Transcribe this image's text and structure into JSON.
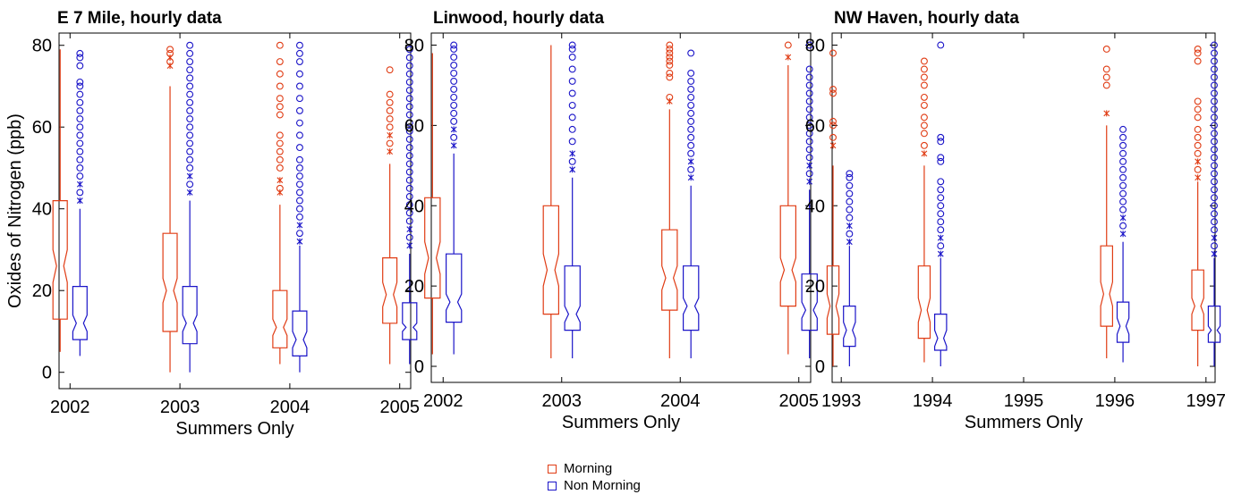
{
  "colors": {
    "morning": "#e03c14",
    "non_morning": "#1a14c8"
  },
  "legend": {
    "morning": "Morning",
    "non_morning": "Non Morning"
  },
  "ylabel": "Oxides of Nitrogen (ppb)",
  "chart_data": [
    {
      "type": "boxplot",
      "title": "E 7 Mile, hourly data",
      "xlabel": "Summers Only",
      "ylabel": "Oxides of Nitrogen (ppb)",
      "ylim": [
        -4,
        83
      ],
      "yticks": [
        0,
        20,
        40,
        60,
        80
      ],
      "categories": [
        "2002",
        "2003",
        "2004",
        "2005"
      ],
      "x_range": [
        2001.9,
        2005.1
      ],
      "series": [
        {
          "name": "Morning",
          "boxes": [
            {
              "x": 2002,
              "q1": 13,
              "median": 26,
              "q3": 42,
              "notch_low": 22,
              "notch_high": 30,
              "whisker_low": 5,
              "whisker_high": 79,
              "outliers": []
            },
            {
              "x": 2003,
              "q1": 10,
              "median": 20,
              "q3": 34,
              "notch_low": 17,
              "notch_high": 23,
              "whisker_low": 0,
              "whisker_high": 70,
              "outliers": [
                75,
                76,
                77,
                78,
                79
              ]
            },
            {
              "x": 2004,
              "q1": 6,
              "median": 11,
              "q3": 20,
              "notch_low": 9,
              "notch_high": 13,
              "whisker_low": 2,
              "whisker_high": 41,
              "outliers": [
                44,
                45,
                47,
                50,
                52,
                54,
                56,
                58,
                63,
                65,
                67,
                70,
                73,
                76,
                80
              ]
            },
            {
              "x": 2005,
              "q1": 12,
              "median": 19,
              "q3": 28,
              "notch_low": 16,
              "notch_high": 22,
              "whisker_low": 2,
              "whisker_high": 51,
              "outliers": [
                54,
                56,
                58,
                60,
                62,
                64,
                66,
                68,
                74
              ]
            }
          ]
        },
        {
          "name": "Non Morning",
          "boxes": [
            {
              "x": 2002,
              "q1": 8,
              "median": 12,
              "q3": 21,
              "notch_low": 10,
              "notch_high": 14,
              "whisker_low": 4,
              "whisker_high": 40,
              "outliers": [
                42,
                44,
                46,
                48,
                50,
                52,
                54,
                56,
                58,
                60,
                62,
                64,
                66,
                68,
                70,
                71,
                75,
                77,
                78
              ]
            },
            {
              "x": 2003,
              "q1": 7,
              "median": 12,
              "q3": 21,
              "notch_low": 10,
              "notch_high": 14,
              "whisker_low": 0,
              "whisker_high": 42,
              "outliers": [
                44,
                46,
                48,
                50,
                52,
                54,
                56,
                58,
                60,
                62,
                64,
                66,
                68,
                70,
                72,
                74,
                76,
                78,
                80
              ]
            },
            {
              "x": 2004,
              "q1": 4,
              "median": 8,
              "q3": 15,
              "notch_low": 6,
              "notch_high": 10,
              "whisker_low": 0,
              "whisker_high": 31,
              "outliers": [
                32,
                34,
                36,
                38,
                40,
                42,
                44,
                46,
                48,
                50,
                52,
                55,
                58,
                61,
                64,
                67,
                70,
                73,
                76,
                78,
                80
              ]
            },
            {
              "x": 2005,
              "q1": 8,
              "median": 11,
              "q3": 17,
              "notch_low": 10,
              "notch_high": 12,
              "whisker_low": 2,
              "whisker_high": 29,
              "outliers": [
                31,
                33,
                35,
                37,
                39,
                41,
                43,
                45,
                47,
                49,
                51,
                53,
                55,
                57,
                59,
                61,
                63,
                65,
                67,
                69,
                71,
                73,
                75,
                77,
                79
              ]
            }
          ]
        }
      ]
    },
    {
      "type": "boxplot",
      "title": "Linwood, hourly data",
      "xlabel": "Summers Only",
      "ylim": [
        -4,
        83
      ],
      "yticks": [
        0,
        20,
        40,
        60,
        80
      ],
      "categories": [
        "2002",
        "2003",
        "2004",
        "2005"
      ],
      "x_range": [
        2001.9,
        2005.1
      ],
      "series": [
        {
          "name": "Morning",
          "boxes": [
            {
              "x": 2002,
              "q1": 17,
              "median": 27,
              "q3": 42,
              "notch_low": 23,
              "notch_high": 31,
              "whisker_low": 3,
              "whisker_high": 78,
              "outliers": []
            },
            {
              "x": 2003,
              "q1": 13,
              "median": 24,
              "q3": 40,
              "notch_low": 20,
              "notch_high": 28,
              "whisker_low": 2,
              "whisker_high": 80,
              "outliers": []
            },
            {
              "x": 2004,
              "q1": 14,
              "median": 22,
              "q3": 34,
              "notch_low": 19,
              "notch_high": 25,
              "whisker_low": 2,
              "whisker_high": 64,
              "outliers": [
                66,
                67,
                72,
                73,
                75,
                76,
                77,
                78,
                79,
                80
              ]
            },
            {
              "x": 2005,
              "q1": 15,
              "median": 24,
              "q3": 40,
              "notch_low": 21,
              "notch_high": 27,
              "whisker_low": 3,
              "whisker_high": 75,
              "outliers": [
                77,
                80
              ]
            }
          ]
        },
        {
          "name": "Non Morning",
          "boxes": [
            {
              "x": 2002,
              "q1": 11,
              "median": 16,
              "q3": 28,
              "notch_low": 14,
              "notch_high": 18,
              "whisker_low": 3,
              "whisker_high": 53,
              "outliers": [
                55,
                57,
                59,
                61,
                63,
                65,
                67,
                69,
                71,
                73,
                75,
                77,
                79,
                80
              ]
            },
            {
              "x": 2003,
              "q1": 9,
              "median": 13,
              "q3": 25,
              "notch_low": 11,
              "notch_high": 15,
              "whisker_low": 2,
              "whisker_high": 47,
              "outliers": [
                49,
                51,
                53,
                56,
                59,
                62,
                65,
                68,
                71,
                74,
                77,
                79,
                80
              ]
            },
            {
              "x": 2004,
              "q1": 9,
              "median": 15,
              "q3": 25,
              "notch_low": 13,
              "notch_high": 17,
              "whisker_low": 2,
              "whisker_high": 45,
              "outliers": [
                47,
                49,
                51,
                53,
                55,
                57,
                59,
                61,
                63,
                65,
                67,
                69,
                71,
                73,
                78
              ]
            },
            {
              "x": 2005,
              "q1": 9,
              "median": 14,
              "q3": 23,
              "notch_low": 12,
              "notch_high": 16,
              "whisker_low": 2,
              "whisker_high": 44,
              "outliers": [
                46,
                48,
                50,
                52,
                54,
                56,
                58,
                60,
                62,
                64,
                66,
                68,
                70,
                72,
                74,
                80
              ]
            }
          ]
        }
      ]
    },
    {
      "type": "boxplot",
      "title": "NW Haven, hourly data",
      "xlabel": "Summers Only",
      "ylim": [
        -4,
        83
      ],
      "yticks": [
        0,
        20,
        40,
        60,
        80
      ],
      "categories": [
        "1993",
        "1994",
        "1995",
        "1996",
        "1997"
      ],
      "x_range": [
        1992.9,
        1997.1
      ],
      "series": [
        {
          "name": "Morning",
          "boxes": [
            {
              "x": 1993,
              "q1": 8,
              "median": 15,
              "q3": 25,
              "notch_low": 12,
              "notch_high": 18,
              "whisker_low": 0,
              "whisker_high": 50,
              "outliers": [
                55,
                57,
                60,
                61,
                68,
                69,
                78
              ]
            },
            {
              "x": 1994,
              "q1": 7,
              "median": 14,
              "q3": 25,
              "notch_low": 11,
              "notch_high": 17,
              "whisker_low": 1,
              "whisker_high": 50,
              "outliers": [
                53,
                55,
                58,
                60,
                62,
                65,
                67,
                70,
                72,
                74,
                76
              ]
            },
            {
              "x": 1996,
              "q1": 10,
              "median": 18,
              "q3": 30,
              "notch_low": 15,
              "notch_high": 21,
              "whisker_low": 2,
              "whisker_high": 60,
              "outliers": [
                63,
                70,
                72,
                74,
                79
              ]
            },
            {
              "x": 1997,
              "q1": 9,
              "median": 15,
              "q3": 24,
              "notch_low": 13,
              "notch_high": 17,
              "whisker_low": 0,
              "whisker_high": 46,
              "outliers": [
                47,
                49,
                51,
                53,
                55,
                57,
                59,
                62,
                64,
                66,
                76,
                78,
                79
              ]
            }
          ]
        },
        {
          "name": "Non Morning",
          "boxes": [
            {
              "x": 1993,
              "q1": 5,
              "median": 9,
              "q3": 15,
              "notch_low": 7,
              "notch_high": 11,
              "whisker_low": 0,
              "whisker_high": 30,
              "outliers": [
                31,
                33,
                35,
                37,
                39,
                41,
                43,
                45,
                47,
                48
              ]
            },
            {
              "x": 1994,
              "q1": 4,
              "median": 7,
              "q3": 13,
              "notch_low": 5,
              "notch_high": 9,
              "whisker_low": 0,
              "whisker_high": 27,
              "outliers": [
                28,
                30,
                32,
                34,
                36,
                38,
                40,
                42,
                44,
                46,
                51,
                52,
                56,
                57,
                80
              ]
            },
            {
              "x": 1996,
              "q1": 6,
              "median": 10,
              "q3": 16,
              "notch_low": 8,
              "notch_high": 12,
              "whisker_low": 1,
              "whisker_high": 31,
              "outliers": [
                33,
                35,
                37,
                39,
                41,
                43,
                45,
                47,
                49,
                51,
                53,
                55,
                57,
                59
              ]
            },
            {
              "x": 1997,
              "q1": 6,
              "median": 9,
              "q3": 15,
              "notch_low": 8,
              "notch_high": 10,
              "whisker_low": 0,
              "whisker_high": 27,
              "outliers": [
                28,
                30,
                32,
                34,
                36,
                38,
                40,
                42,
                44,
                46,
                48,
                50,
                52,
                54,
                56,
                58,
                60,
                62,
                64,
                66,
                68,
                70,
                72,
                74,
                76,
                78,
                80
              ]
            }
          ]
        }
      ]
    }
  ]
}
